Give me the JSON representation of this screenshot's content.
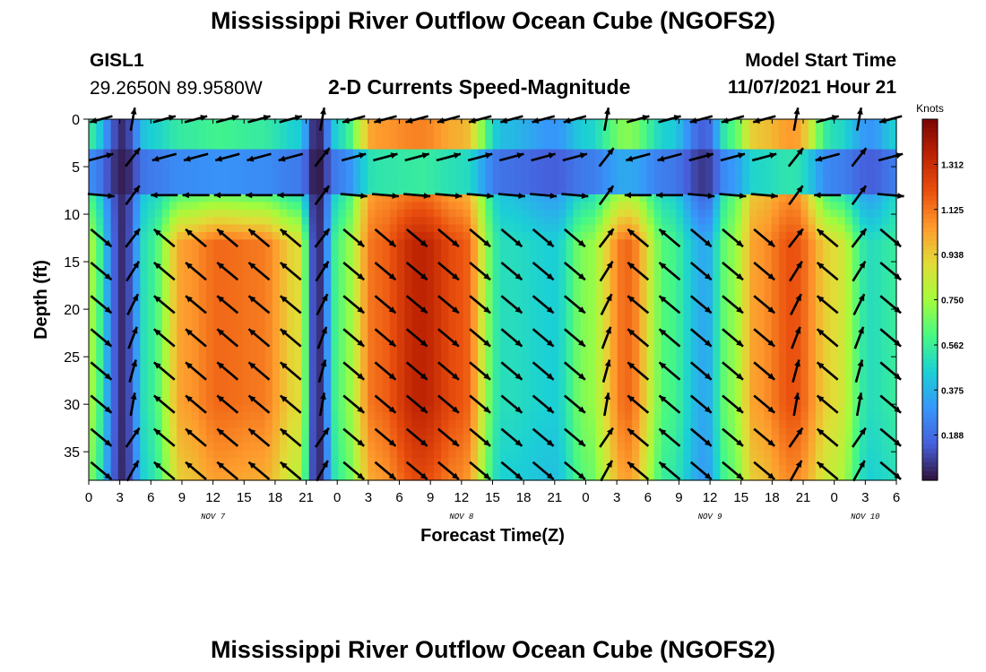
{
  "title": "Mississippi River Outflow Ocean Cube (NGOFS2)",
  "station": {
    "id": "GISL1",
    "location": "29.2650N  89.9580W"
  },
  "model_start": {
    "label": "Model Start Time",
    "value": "11/07/2021 Hour 21"
  },
  "second_panel_title": "Mississippi River Outflow Ocean Cube (NGOFS2)",
  "chart_data": {
    "type": "heatmap",
    "subtitle": "2-D Currents Speed-Magnitude",
    "xlabel": "Forecast Time(Z)",
    "ylabel": "Depth (ft)",
    "x_hours_range": [
      0,
      78
    ],
    "x_tick_labels": [
      "0",
      "3",
      "6",
      "9",
      "12",
      "15",
      "18",
      "21",
      "0",
      "3",
      "6",
      "9",
      "12",
      "15",
      "18",
      "21",
      "0",
      "3",
      "6",
      "9",
      "12",
      "15",
      "18",
      "21",
      "0",
      "3",
      "6"
    ],
    "date_labels": [
      {
        "text": "NOV 7",
        "hour": 12
      },
      {
        "text": "NOV 8",
        "hour": 36
      },
      {
        "text": "NOV 9",
        "hour": 60
      },
      {
        "text": "NOV 10",
        "hour": 75
      }
    ],
    "depth_range_ft": [
      0,
      38
    ],
    "y_tick_labels": [
      "0",
      "5",
      "10",
      "15",
      "20",
      "25",
      "30",
      "35"
    ],
    "y_tick_values": [
      0,
      5,
      10,
      15,
      20,
      25,
      30,
      35
    ],
    "colorbar": {
      "unit": "Knots",
      "range": [
        0,
        1.5
      ],
      "tick_labels": [
        "1.312",
        "1.125",
        "0.938",
        "0.750",
        "0.562",
        "0.375",
        "0.188"
      ],
      "tick_values": [
        1.312,
        1.125,
        0.938,
        0.75,
        0.562,
        0.375,
        0.188
      ]
    },
    "column_hours": [
      0,
      3.3,
      5.8,
      9.3,
      12.6,
      16.5,
      20.3,
      22,
      24.3,
      27.8,
      32,
      36,
      40,
      45,
      48,
      52,
      56,
      59.5,
      62,
      64.5,
      68,
      72,
      75.5,
      78
    ],
    "surface_speed_knots": [
      0.55,
      0.05,
      0.45,
      0.55,
      0.58,
      0.55,
      0.45,
      0.02,
      0.5,
      1.05,
      1.1,
      1.0,
      0.4,
      0.3,
      0.45,
      0.7,
      0.45,
      0.15,
      0.6,
      0.95,
      1.05,
      0.5,
      0.3,
      0.45
    ],
    "deep_speed_knots": [
      0.75,
      0.05,
      0.55,
      1.05,
      1.15,
      1.12,
      0.9,
      0.03,
      0.65,
      1.15,
      1.35,
      1.2,
      0.5,
      0.45,
      0.7,
      1.15,
      0.6,
      0.35,
      0.7,
      1.05,
      1.2,
      0.9,
      0.5,
      0.55
    ],
    "slack_hours": [
      3.3,
      21.8,
      51,
      57.8,
      68.7,
      73.7
    ]
  }
}
